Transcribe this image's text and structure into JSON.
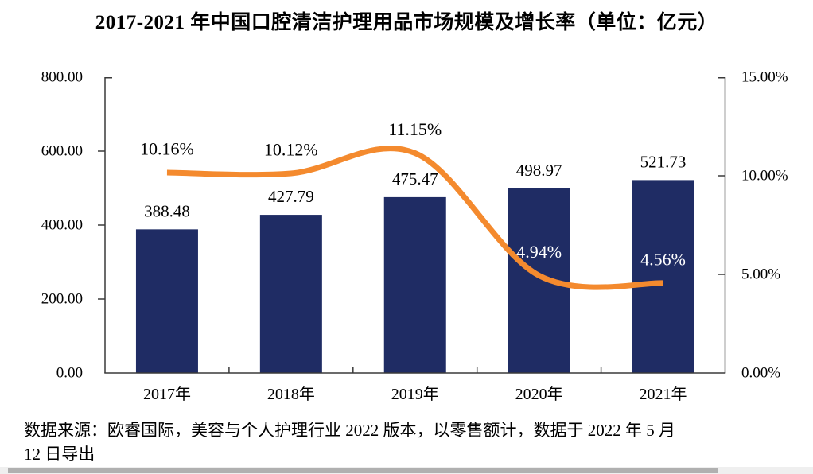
{
  "title": "2017-2021 年中国口腔清洁护理用品市场规模及增长率（单位：亿元）",
  "chart_data": {
    "type": "bar",
    "subtype": "combo-bar-line",
    "categories": [
      "2017年",
      "2018年",
      "2019年",
      "2020年",
      "2021年"
    ],
    "series": [
      {
        "name": "市场规模（亿元）",
        "type": "bar",
        "axis": "left",
        "color": "#1F2C64",
        "values": [
          388.48,
          427.79,
          475.47,
          498.97,
          521.73
        ],
        "data_labels": [
          "388.48",
          "427.79",
          "475.47",
          "498.97",
          "521.73"
        ]
      },
      {
        "name": "增长率",
        "type": "line",
        "axis": "right",
        "color": "#F48A2E",
        "values": [
          10.16,
          10.12,
          11.15,
          4.94,
          4.56
        ],
        "data_labels": [
          "10.16%",
          "10.12%",
          "11.15%",
          "4.94%",
          "4.56%"
        ],
        "data_label_styles": [
          "dark",
          "dark",
          "dark",
          "light",
          "light"
        ]
      }
    ],
    "left_axis": {
      "min": 0,
      "max": 800,
      "step": 200,
      "tick_labels": [
        "800.00",
        "600.00",
        "400.00",
        "200.00",
        "0.00"
      ]
    },
    "right_axis": {
      "min": 0,
      "max": 15,
      "step": 5,
      "tick_labels": [
        "15.00%",
        "10.00%",
        "5.00%",
        "0.00%"
      ]
    },
    "grid": false,
    "legend": "none",
    "label_colors": {
      "dark": "#000000",
      "light": "#ffffff"
    },
    "axis_color": "#3a3a3a",
    "text_color": "#000000"
  },
  "source_note": {
    "line1": "数据来源：欧睿国际，美容与个人护理行业 2022 版本，以零售额计，数据于 2022 年 5 月",
    "line2": "12 日导出"
  }
}
